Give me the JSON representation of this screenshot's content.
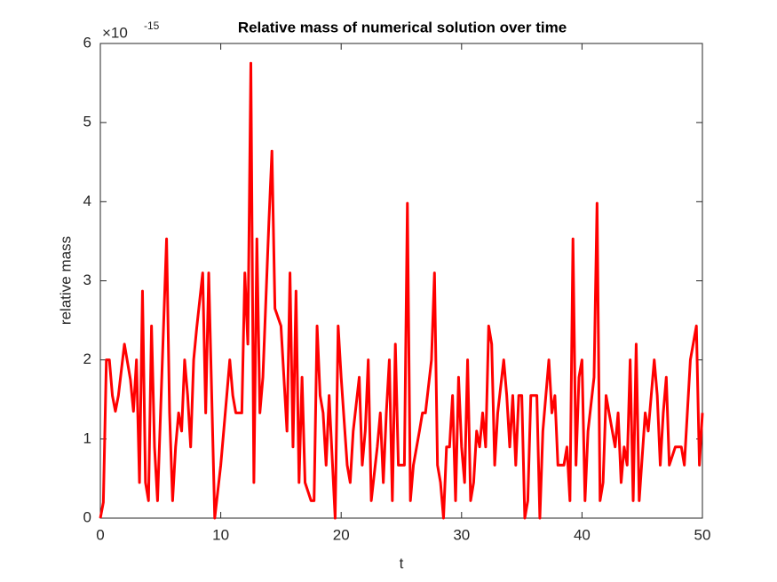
{
  "chart_data": {
    "type": "line",
    "title": "Relative mass of numerical solution over time",
    "xlabel": "t",
    "ylabel": "relative mass",
    "y_multiplier": "×10",
    "y_exponent": "-15",
    "x": [
      0,
      0.25,
      0.5,
      0.75,
      1,
      1.25,
      1.5,
      2,
      2.5,
      2.75,
      3,
      3.25,
      3.5,
      3.75,
      4,
      4.25,
      4.5,
      4.75,
      5,
      5.5,
      5.75,
      6,
      6.25,
      6.5,
      6.75,
      7,
      7.25,
      7.5,
      7.75,
      8,
      8.5,
      8.75,
      9,
      9.5,
      10,
      10.5,
      10.75,
      11,
      11.25,
      11.75,
      12,
      12.25,
      12.5,
      12.75,
      13,
      13.25,
      13.5,
      14,
      14.25,
      14.5,
      15,
      15.5,
      15.75,
      16,
      16.25,
      16.5,
      16.75,
      17,
      17.5,
      17.75,
      18,
      18.25,
      18.5,
      18.75,
      19,
      19.5,
      19.75,
      20,
      20.5,
      20.75,
      21,
      21.5,
      21.75,
      22,
      22.25,
      22.5,
      23,
      23.25,
      23.5,
      23.75,
      24,
      24.25,
      24.5,
      24.75,
      25.25,
      25.5,
      25.75,
      26,
      26.5,
      26.75,
      27,
      27.5,
      27.75,
      28,
      28.25,
      28.5,
      28.75,
      29,
      29.25,
      29.5,
      29.75,
      30,
      30.25,
      30.5,
      30.75,
      31,
      31.25,
      31.5,
      31.75,
      32,
      32.25,
      32.5,
      32.75,
      33,
      33.5,
      33.75,
      34,
      34.25,
      34.5,
      34.75,
      35,
      35.25,
      35.5,
      35.75,
      36.25,
      36.5,
      36.75,
      37.25,
      37.5,
      37.75,
      38,
      38.5,
      38.75,
      39,
      39.25,
      39.5,
      39.75,
      40,
      40.25,
      40.5,
      41,
      41.25,
      41.5,
      41.75,
      42,
      42.25,
      42.75,
      43,
      43.25,
      43.5,
      43.75,
      44,
      44.25,
      44.5,
      44.75,
      45.25,
      45.5,
      46,
      46.25,
      46.5,
      46.75,
      47,
      47.25,
      47.75,
      48.25,
      48.5,
      49,
      49.5,
      49.75,
      50
    ],
    "series": [
      {
        "color": "#ff0000",
        "values": [
          0,
          0.2,
          2.0,
          2.0,
          1.55,
          1.35,
          1.55,
          2.2,
          1.75,
          1.35,
          2.0,
          0.45,
          2.87,
          0.45,
          0.22,
          2.43,
          0.9,
          0.22,
          1.33,
          3.53,
          1.33,
          0.22,
          0.9,
          1.33,
          1.1,
          2.0,
          1.55,
          0.9,
          2.0,
          2.4,
          3.1,
          1.33,
          3.1,
          0,
          0.67,
          1.55,
          2.0,
          1.55,
          1.33,
          1.33,
          3.1,
          2.2,
          5.75,
          0.45,
          3.53,
          1.33,
          1.78,
          3.75,
          4.64,
          2.65,
          2.43,
          1.1,
          3.1,
          0.9,
          2.87,
          0.45,
          1.78,
          0.45,
          0.22,
          0.22,
          2.43,
          1.55,
          1.33,
          0.67,
          1.55,
          0,
          2.43,
          1.78,
          0.67,
          0.45,
          1.1,
          1.78,
          0.67,
          1.1,
          2.0,
          0.22,
          0.9,
          1.33,
          0.45,
          1.33,
          2.0,
          0.22,
          2.2,
          0.67,
          0.67,
          3.98,
          0.22,
          0.67,
          1.1,
          1.33,
          1.33,
          2.0,
          3.1,
          0.67,
          0.45,
          0,
          0.9,
          0.9,
          1.55,
          0.22,
          1.78,
          0.9,
          0.45,
          2.0,
          0.22,
          0.45,
          1.1,
          0.9,
          1.33,
          0.9,
          2.43,
          2.2,
          0.67,
          1.33,
          2.0,
          1.55,
          0.9,
          1.55,
          0.67,
          1.55,
          1.55,
          0,
          0.22,
          1.55,
          1.55,
          0,
          1.1,
          2.0,
          1.33,
          1.55,
          0.67,
          0.67,
          0.9,
          0.22,
          3.53,
          0.67,
          1.78,
          2.0,
          0.22,
          1.1,
          1.78,
          3.98,
          0.22,
          0.45,
          1.55,
          1.33,
          0.9,
          1.33,
          0.45,
          0.9,
          0.67,
          2.0,
          0.22,
          2.2,
          0.22,
          1.33,
          1.1,
          2.0,
          1.55,
          0.67,
          1.33,
          1.78,
          0.67,
          0.9,
          0.9,
          0.67,
          2.0,
          2.43,
          0.67,
          1.33
        ]
      }
    ],
    "xlim": [
      0,
      50
    ],
    "xticks": [
      0,
      10,
      20,
      30,
      40,
      50
    ],
    "ylim": [
      0,
      6
    ],
    "yticks": [
      0,
      1,
      2,
      3,
      4,
      5,
      6
    ],
    "grid": false
  }
}
